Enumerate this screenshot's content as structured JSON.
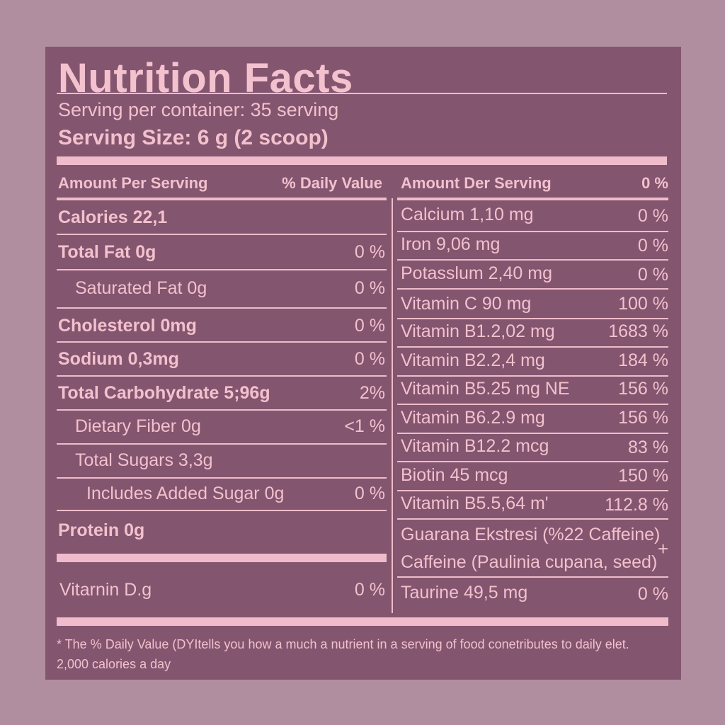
{
  "title": "Nutrition Facts",
  "serving_per_container": "Serving per container: 35 serving",
  "serving_size": "Serving Size: 6 g (2 scoop)",
  "left": {
    "header_amount": "Amount Per Serving",
    "header_dv": "% Daily Value",
    "rows": [
      {
        "label": "Calories  22,1",
        "dv": ""
      },
      {
        "label": "Total Fat  0g",
        "dv": "0 %"
      },
      {
        "label": "Saturated Fat  0g",
        "dv": "0 %"
      },
      {
        "label": "Cholesterol  0mg",
        "dv": "0 %"
      },
      {
        "label": "Sodium  0,3mg",
        "dv": "0 %"
      },
      {
        "label": "Total Carbohydrate  5;96g",
        "dv": "2%"
      },
      {
        "label": "Dietary Fiber 0g",
        "dv": "<1 %"
      },
      {
        "label": "Total Sugars 3,3g",
        "dv": ""
      },
      {
        "label": "Includes Added Sugar 0g",
        "dv": "0 %"
      },
      {
        "label": "Protein  0g",
        "dv": ""
      },
      {
        "label": "Vitarnin D.g",
        "dv": "0 %"
      }
    ]
  },
  "right": {
    "header_amount": "Amount Der Serving",
    "header_dv": "0 %",
    "rows": [
      {
        "label": "Calcium 1,10 mg",
        "dv": "0 %"
      },
      {
        "label": "Iron 9,06 mg",
        "dv": "0 %"
      },
      {
        "label": "Potasslum 2,40 mg",
        "dv": "0 %"
      },
      {
        "label": "Vitamin C 90 mg",
        "dv": "100 %"
      },
      {
        "label": "Vitamin B1.2,02 mg",
        "dv": "1683 %"
      },
      {
        "label": "Vitamin B2.2,4 mg",
        "dv": "184 %"
      },
      {
        "label": "Vitamin B5.25 mg NE",
        "dv": "156 %"
      },
      {
        "label": "Vitamin B6.2.9 mg",
        "dv": "156 %"
      },
      {
        "label": "Vitamin B12.2 mcg",
        "dv": "83 %"
      },
      {
        "label": "Biotin 45 mcg",
        "dv": "150 %"
      },
      {
        "label": "Vitamin B5.5,64 m'",
        "dv": "112.8 %"
      },
      {
        "label": "Guarana Ekstresi (%22 Caffeine)",
        "dv": ""
      },
      {
        "label": "Caffeine (Paulinia cupana, seed)",
        "dv": "+"
      },
      {
        "label": "Taurine 49,5 mg",
        "dv": "0 %"
      }
    ]
  },
  "footnote_line1": "* The % Daily Value (DYItells you how a much a nutrient in a serving of food conetributes to daily elet.",
  "footnote_line2": "2,000 calories a day"
}
